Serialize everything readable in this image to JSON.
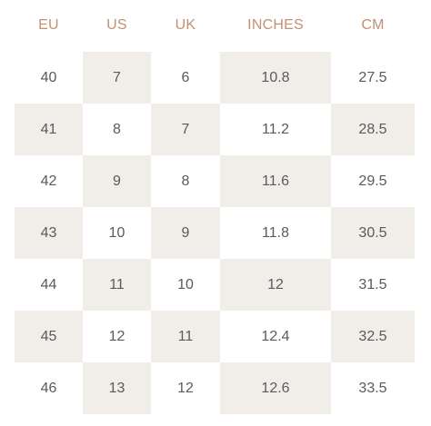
{
  "size_chart": {
    "headers": [
      "EU",
      "US",
      "UK",
      "INCHES",
      "CM"
    ],
    "rows": [
      [
        "40",
        "7",
        "6",
        "10.8",
        "27.5"
      ],
      [
        "41",
        "8",
        "7",
        "11.2",
        "28.5"
      ],
      [
        "42",
        "9",
        "8",
        "11.6",
        "29.5"
      ],
      [
        "43",
        "10",
        "9",
        "11.8",
        "30.5"
      ],
      [
        "44",
        "11",
        "10",
        "12",
        "31.5"
      ],
      [
        "45",
        "12",
        "11",
        "12.4",
        "32.5"
      ],
      [
        "46",
        "13",
        "12",
        "12.6",
        "33.5"
      ]
    ]
  },
  "colors": {
    "header_text": "#c58f73",
    "body_text": "#5a5a5a",
    "shade": "#f1eeea"
  }
}
